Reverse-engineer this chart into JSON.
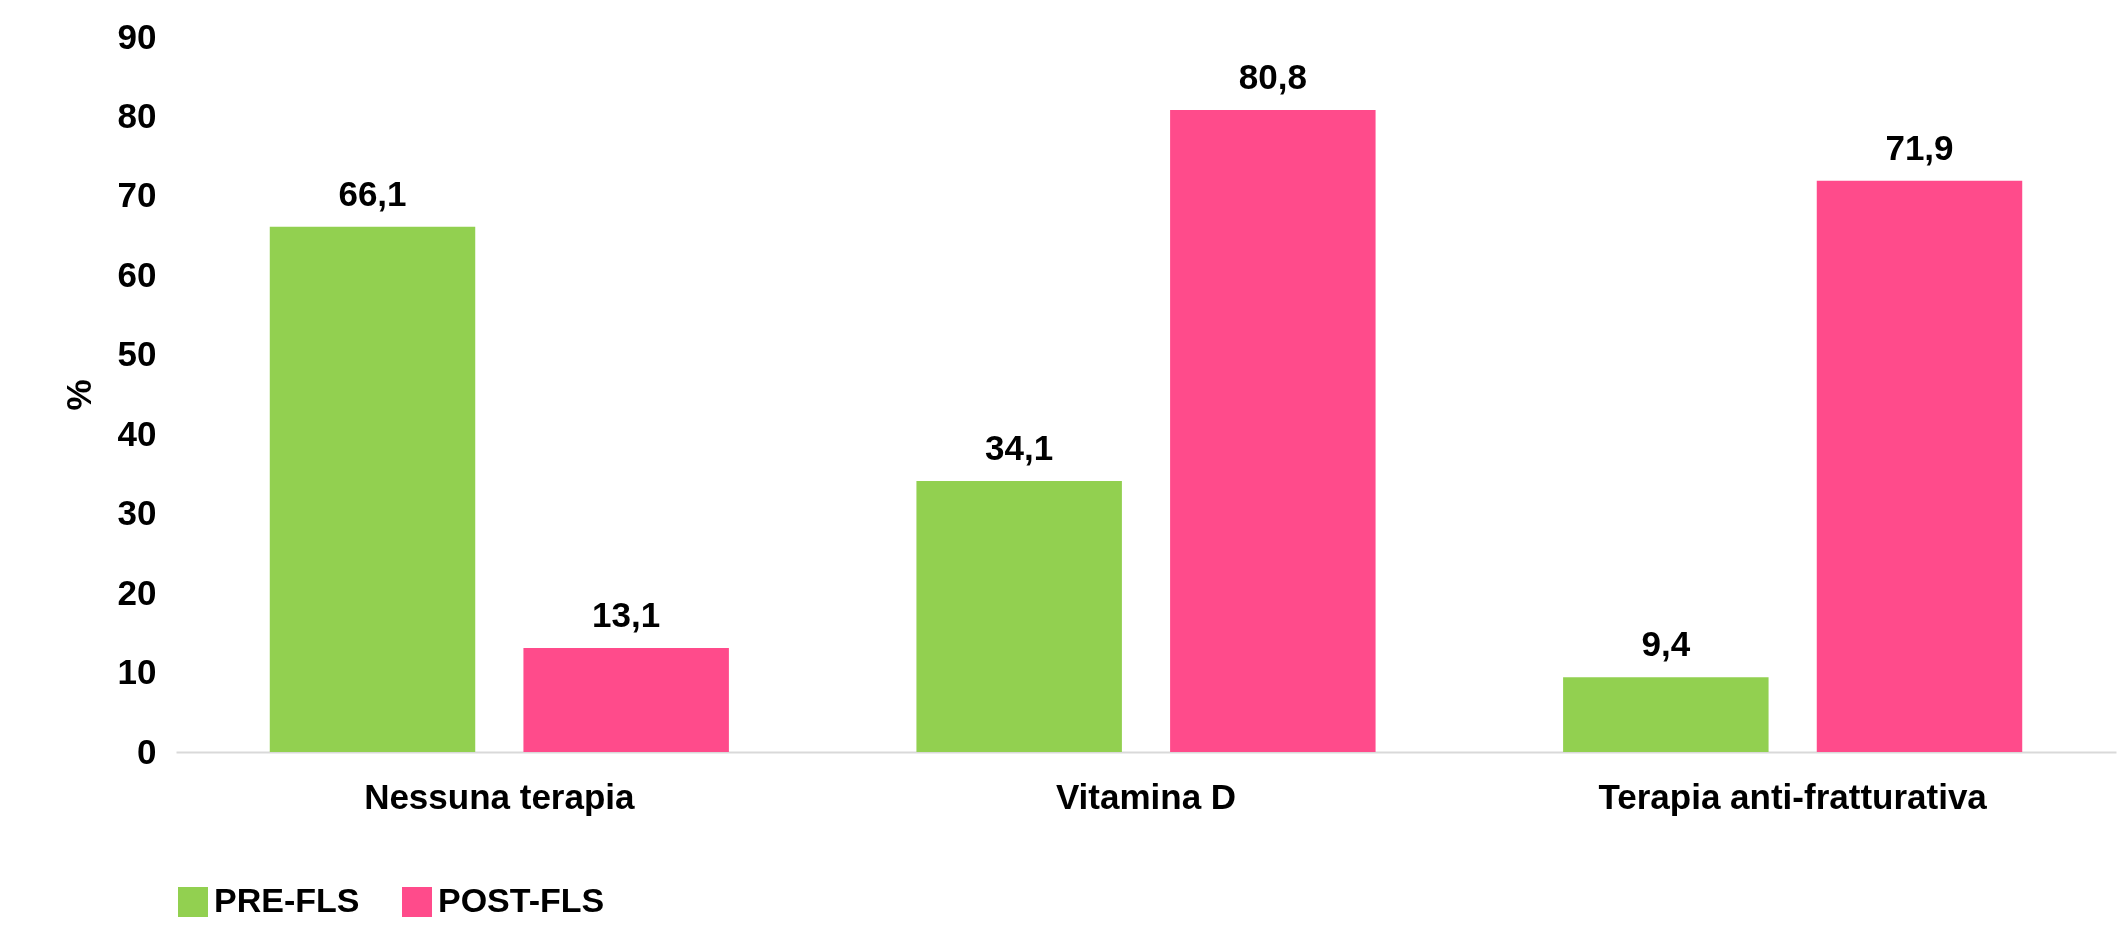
{
  "chart_data": {
    "type": "bar",
    "ylabel": "%",
    "categories": [
      "Nessuna terapia",
      "Vitamina D",
      "Terapia anti-fratturativa"
    ],
    "series": [
      {
        "name": "PRE-FLS",
        "color": "#92d050",
        "values": [
          66.1,
          34.1,
          9.4
        ],
        "value_labels": [
          "66,1",
          "34,1",
          "9,4"
        ]
      },
      {
        "name": "POST-FLS",
        "color": "#ff4b8b",
        "values": [
          13.1,
          80.8,
          71.9
        ],
        "value_labels": [
          "13,1",
          "80,8",
          "71,9"
        ]
      }
    ],
    "ylim": [
      0,
      90
    ],
    "yticks": [
      0,
      10,
      20,
      30,
      40,
      50,
      60,
      70,
      80,
      90
    ],
    "grid": false,
    "legend": "bottom"
  }
}
